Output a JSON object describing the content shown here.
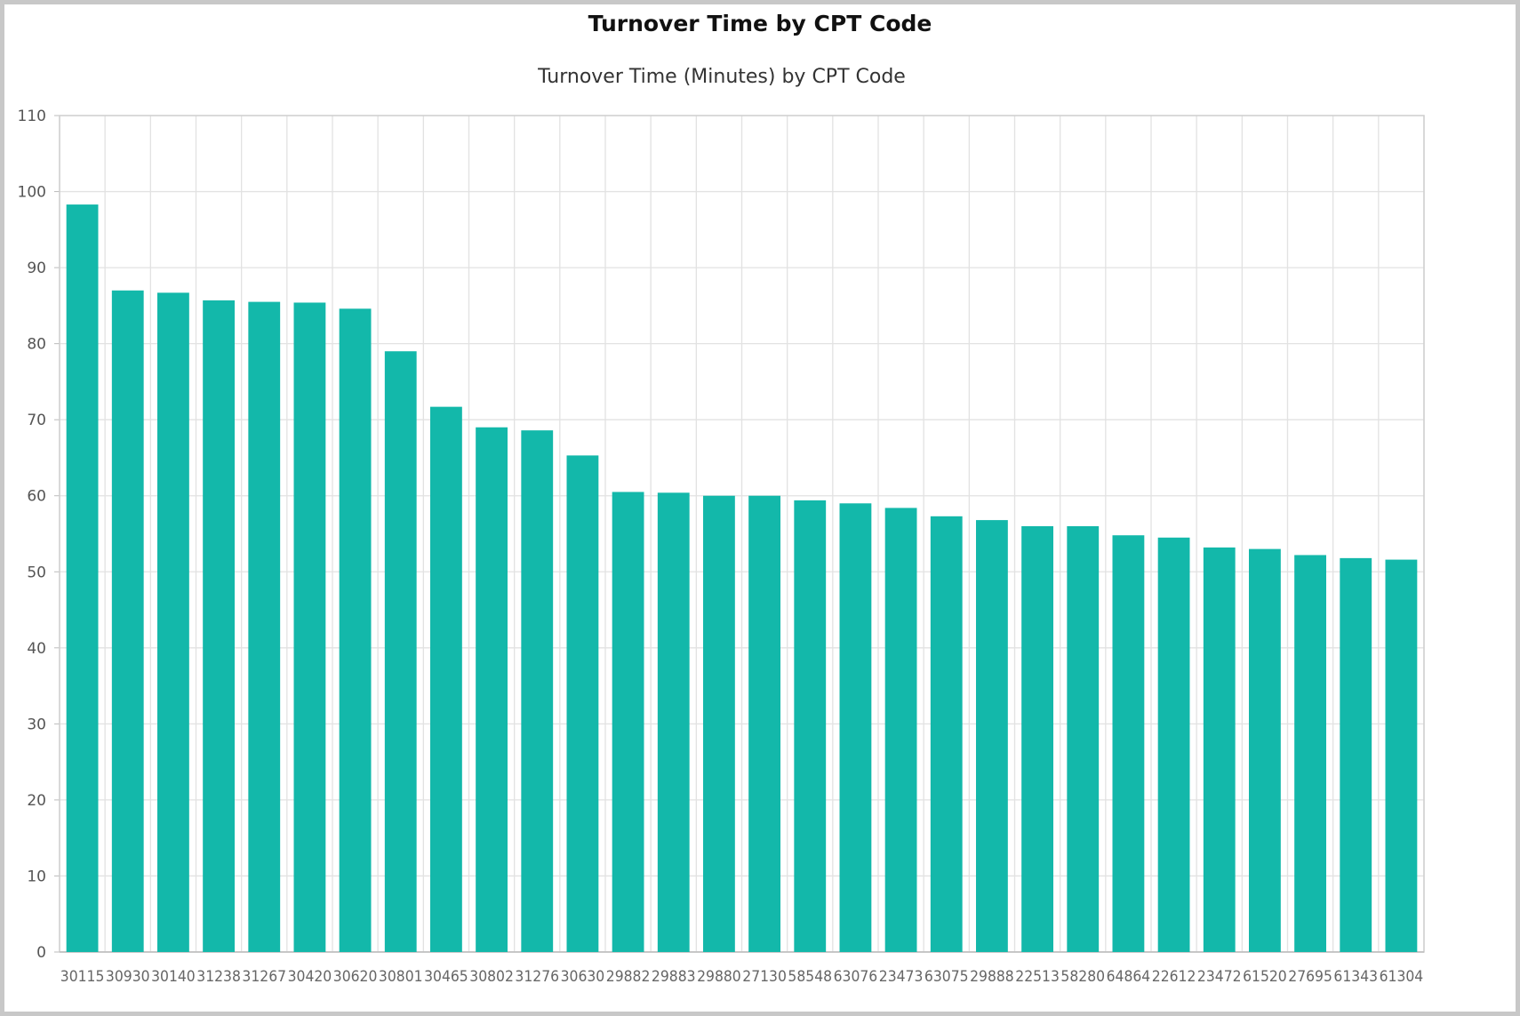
{
  "page": {
    "title": "Turnover Time by CPT Code"
  },
  "chart_data": {
    "type": "bar",
    "title": "Turnover Time (Minutes) by CPT Code",
    "xlabel": "",
    "ylabel": "",
    "ylim": [
      0,
      110
    ],
    "yticks": [
      0,
      10,
      20,
      30,
      40,
      50,
      60,
      70,
      80,
      90,
      100,
      110
    ],
    "grid": true,
    "bar_color": "#13b8aa",
    "categories": [
      "30115",
      "30930",
      "30140",
      "31238",
      "31267",
      "30420",
      "30620",
      "30801",
      "30465",
      "30802",
      "31276",
      "30630",
      "29882",
      "29883",
      "29880",
      "27130",
      "58548",
      "63076",
      "23473",
      "63075",
      "29888",
      "22513",
      "58280",
      "64864",
      "22612",
      "23472",
      "61520",
      "27695",
      "61343",
      "61304"
    ],
    "values": [
      98.3,
      87.0,
      86.7,
      85.7,
      85.5,
      85.4,
      84.6,
      79.0,
      71.7,
      69.0,
      68.6,
      65.3,
      60.5,
      60.4,
      60.0,
      60.0,
      59.4,
      59.0,
      58.4,
      57.3,
      56.8,
      56.0,
      56.0,
      54.8,
      54.5,
      53.2,
      53.0,
      52.2,
      51.8,
      51.6
    ]
  }
}
